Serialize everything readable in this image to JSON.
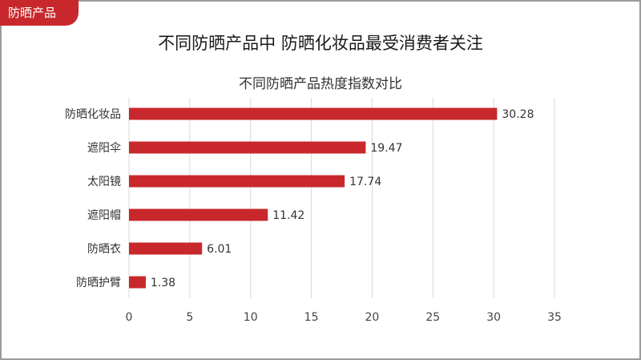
{
  "tag": {
    "label": "防晒产品"
  },
  "headline": "不同防晒产品中 防晒化妆品最受消费者关注",
  "colors": {
    "bar": "#c8282c",
    "accent": "#c8282c",
    "grid": "#d9d9d9"
  },
  "chart_data": {
    "type": "bar",
    "orientation": "horizontal",
    "title": "不同防晒产品热度指数对比",
    "categories": [
      "防晒化妆品",
      "遮阳伞",
      "太阳镜",
      "遮阳帽",
      "防晒衣",
      "防晒护臂"
    ],
    "values": [
      30.28,
      19.47,
      17.74,
      11.42,
      6.01,
      1.38
    ],
    "value_labels": [
      "30.28",
      "19.47",
      "17.74",
      "11.42",
      "6.01",
      "1.38"
    ],
    "xlim": [
      0,
      35
    ],
    "xticks": [
      0,
      5,
      10,
      15,
      20,
      25,
      30,
      35
    ],
    "grid": "vertical",
    "xlabel": "",
    "ylabel": ""
  }
}
